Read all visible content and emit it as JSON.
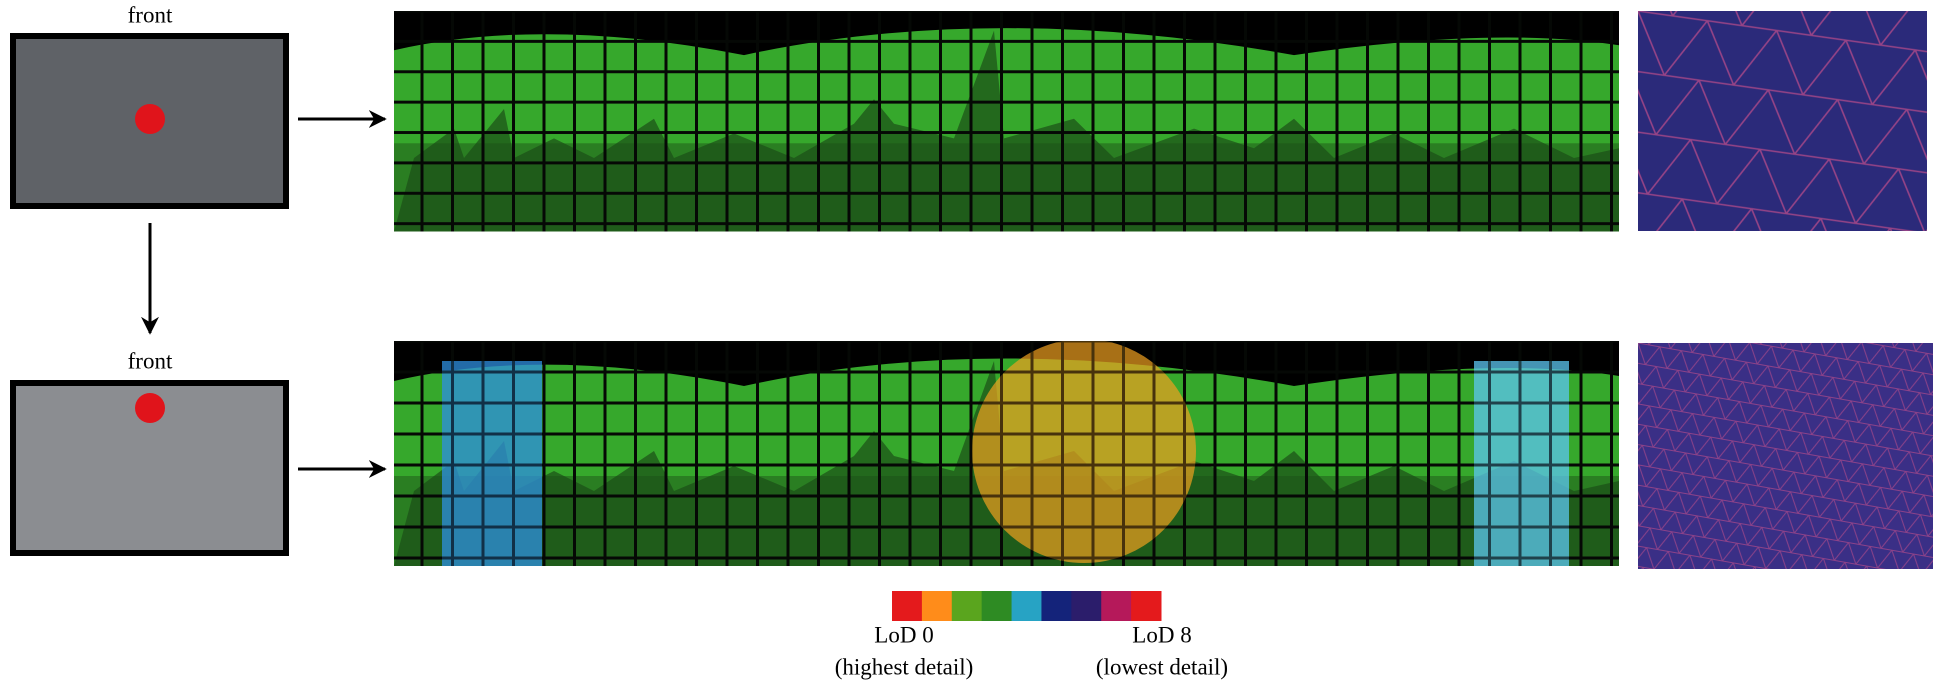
{
  "labels": {
    "top_view": "front",
    "bottom_view": "front"
  },
  "colorbar": {
    "colors": [
      "#e41a1c",
      "#ff8c1a",
      "#5aa51e",
      "#2e8b23",
      "#27a3c4",
      "#14237a",
      "#2b1d6b",
      "#b5195a",
      "#e41a1c"
    ],
    "min_label": "LoD 0",
    "min_caption": "(highest detail)",
    "max_label": "LoD 8",
    "max_caption": "(lowest detail)"
  }
}
